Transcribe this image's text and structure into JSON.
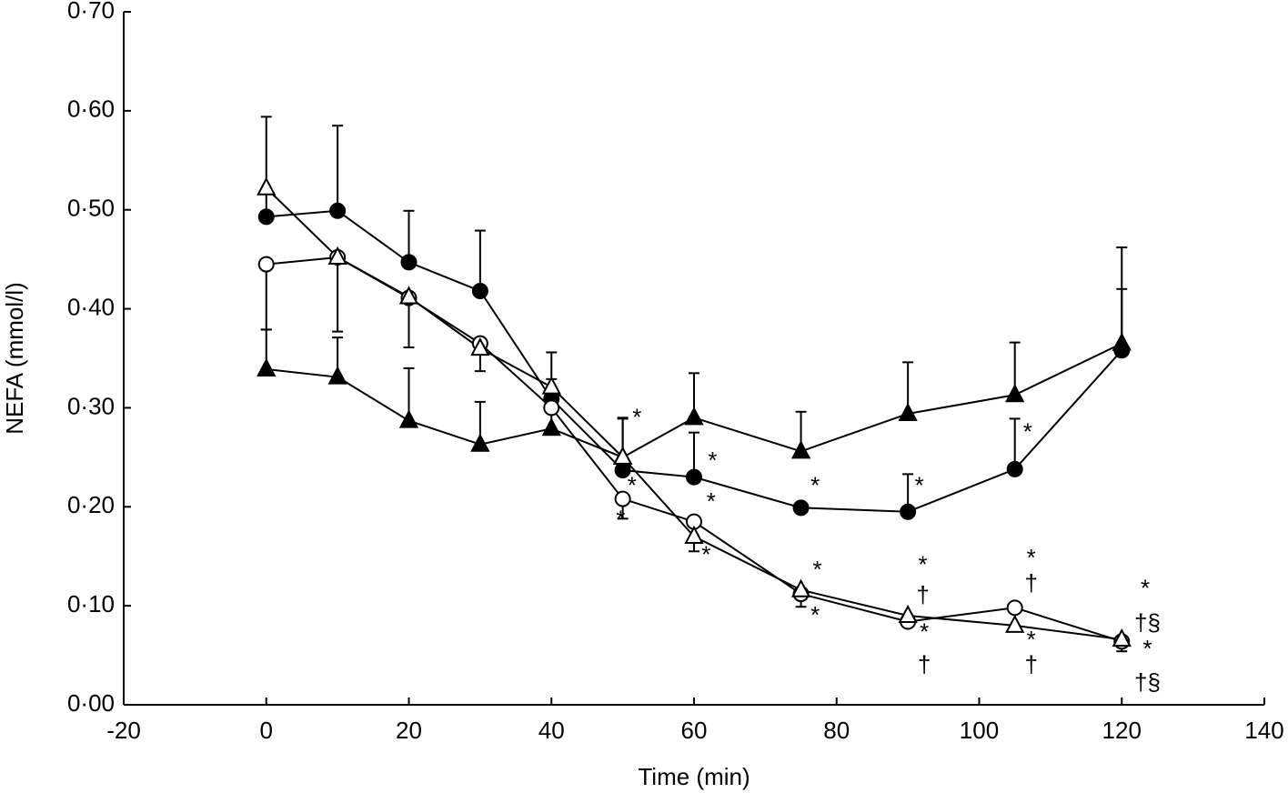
{
  "chart_data": {
    "type": "line",
    "xlabel": "Time (min)",
    "ylabel": "NEFA (mmol/l)",
    "xlim": [
      -20,
      140
    ],
    "xticks": [
      -20,
      0,
      20,
      40,
      60,
      80,
      100,
      120,
      140
    ],
    "ylim": [
      0,
      0.7
    ],
    "yticks": [
      {
        "value": 0,
        "label": "0·00"
      },
      {
        "value": 0.1,
        "label": "0·10"
      },
      {
        "value": 0.2,
        "label": "0·20"
      },
      {
        "value": 0.3,
        "label": "0·30"
      },
      {
        "value": 0.4,
        "label": "0·40"
      },
      {
        "value": 0.5,
        "label": "0·50"
      },
      {
        "value": 0.6,
        "label": "0·60"
      },
      {
        "value": 0.7,
        "label": "0·70"
      }
    ],
    "grid": false,
    "x": [
      0,
      10,
      20,
      30,
      40,
      50,
      60,
      75,
      90,
      105,
      120
    ],
    "series": [
      {
        "color": "#000000",
        "marker": "triangle",
        "filled": true,
        "error_direction": "up",
        "values": [
          0.339,
          0.331,
          0.287,
          0.263,
          0.279,
          0.25,
          0.29,
          0.256,
          0.294,
          0.313,
          0.365
        ],
        "errors": [
          0.04,
          0.04,
          0.053,
          0.043,
          0.05,
          0.04,
          0.045,
          0.04,
          0.052,
          0.053,
          0.097
        ]
      },
      {
        "color": "#000000",
        "marker": "circle",
        "filled": true,
        "error_direction": "up",
        "values": [
          0.493,
          0.499,
          0.447,
          0.418,
          0.309,
          0.237,
          0.23,
          0.199,
          0.195,
          0.238,
          0.358
        ],
        "errors": [
          0.028,
          0.086,
          0.052,
          0.061,
          0.047,
          0.052,
          0.045,
          0.0,
          0.038,
          0.051,
          0.062
        ]
      },
      {
        "color": "#000000",
        "marker": "circle",
        "filled": false,
        "error_direction": "down",
        "values": [
          0.445,
          0.452,
          0.411,
          0.365,
          0.3,
          0.208,
          0.185,
          0.112,
          0.084,
          0.098,
          0.064
        ],
        "errors": [
          0.066,
          0.075,
          0.05,
          0.028,
          0.0,
          0.02,
          0.03,
          0.013,
          0.0,
          0.018,
          0.01
        ]
      },
      {
        "color": "#000000",
        "marker": "triangle",
        "filled": false,
        "error_direction": "up",
        "values": [
          0.522,
          0.452,
          0.412,
          0.36,
          0.321,
          0.25,
          0.17,
          0.116,
          0.09,
          0.08,
          0.066
        ],
        "errors": [
          0.072,
          0.0,
          0.0,
          0.0,
          0.0,
          0.0,
          0.0,
          0.0,
          0.0,
          0.0,
          0.0
        ]
      }
    ],
    "annotations": [
      {
        "text": "*",
        "x": 52,
        "y": 0.289
      },
      {
        "text": "*",
        "x": 51.3,
        "y": 0.22
      },
      {
        "text": "*",
        "x": 49.7,
        "y": 0.186
      },
      {
        "text": "*",
        "x": 62.6,
        "y": 0.245
      },
      {
        "text": "*",
        "x": 62.4,
        "y": 0.204
      },
      {
        "text": "*",
        "x": 61.7,
        "y": 0.15
      },
      {
        "text": "*",
        "x": 77,
        "y": 0.22
      },
      {
        "text": "*",
        "x": 77.3,
        "y": 0.135
      },
      {
        "text": "*",
        "x": 77,
        "y": 0.089
      },
      {
        "text": "*",
        "x": 91.6,
        "y": 0.22
      },
      {
        "text": "*",
        "x": 92.1,
        "y": 0.14
      },
      {
        "text": "†",
        "x": 92.1,
        "y": 0.109
      },
      {
        "text": "*",
        "x": 92.3,
        "y": 0.072
      },
      {
        "text": "†",
        "x": 92.3,
        "y": 0.039
      },
      {
        "text": "*",
        "x": 106.8,
        "y": 0.274
      },
      {
        "text": "*",
        "x": 107.3,
        "y": 0.147
      },
      {
        "text": "†",
        "x": 107.3,
        "y": 0.121
      },
      {
        "text": "*",
        "x": 107.3,
        "y": 0.064
      },
      {
        "text": "†",
        "x": 107.3,
        "y": 0.039
      },
      {
        "text": "*",
        "x": 123.3,
        "y": 0.116
      },
      {
        "text": "†§",
        "x": 123.6,
        "y": 0.081
      },
      {
        "text": "*",
        "x": 123.6,
        "y": 0.055
      },
      {
        "text": "†§",
        "x": 123.6,
        "y": 0.021
      }
    ]
  }
}
